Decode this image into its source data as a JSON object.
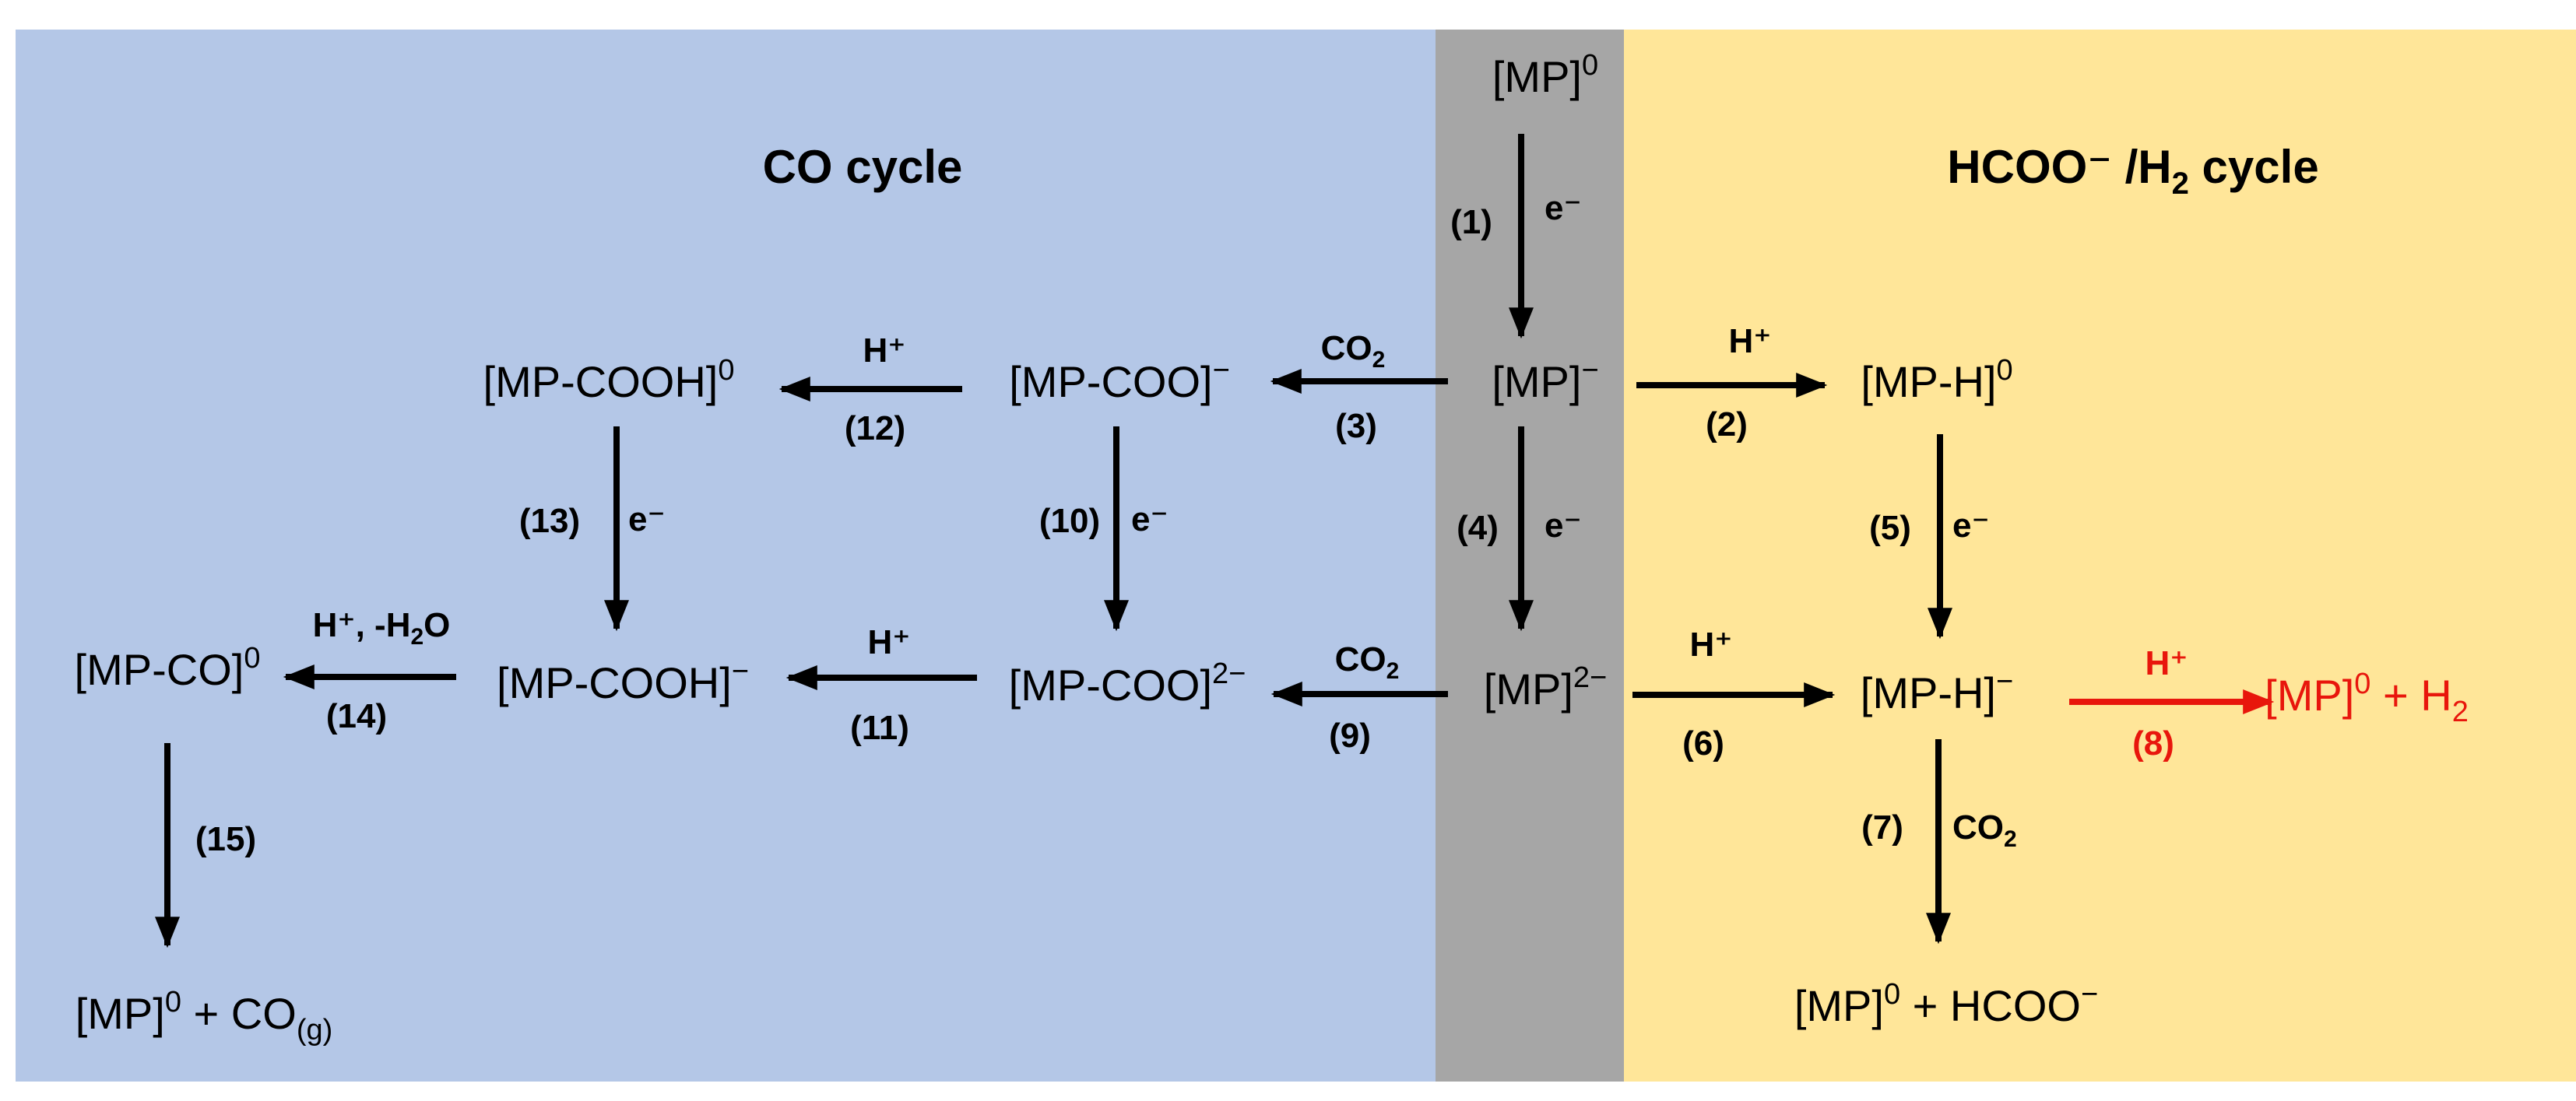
{
  "colors": {
    "co_region": "#b4c7e7",
    "center_region": "#a6a6a6",
    "hcoo_region": "#ffe699",
    "arrow": "#000000",
    "highlight": "#e8160c"
  },
  "titles": {
    "co_cycle": "CO cycle",
    "hcoo_cycle_prefix": "HCOO⁻ /H",
    "hcoo_cycle_sub": "2",
    "hcoo_cycle_suffix": " cycle"
  },
  "species": {
    "mp0_top": {
      "main": "[MP]",
      "sup": "0"
    },
    "mp_minus": {
      "main": "[MP]",
      "sup": "−"
    },
    "mp_2minus": {
      "main": "[MP]",
      "sup": "2−"
    },
    "mp_h_0": {
      "main": "[MP-H]",
      "sup": "0"
    },
    "mp_h_minus": {
      "main": "[MP-H]",
      "sup": "−"
    },
    "mp_h2_product": {
      "main1": "[MP]",
      "sup": "0",
      "main2": " + H",
      "sub": "2"
    },
    "mp_hcoo_product": {
      "main1": "[MP]",
      "sup": "0",
      "main2": " + HCOO",
      "sup2": "−"
    },
    "mp_coo_minus": {
      "main": "[MP-COO]",
      "sup": "−"
    },
    "mp_coo_2minus": {
      "main": "[MP-COO]",
      "sup": "2−"
    },
    "mp_cooh_0": {
      "main": "[MP-COOH]",
      "sup": "0"
    },
    "mp_cooh_minus": {
      "main": "[MP-COOH]",
      "sup": "−"
    },
    "mp_co_0": {
      "main": "[MP-CO]",
      "sup": "0"
    },
    "mp_co_product": {
      "main1": "[MP]",
      "sup": "0",
      "main2": " + CO",
      "sub": "(g)"
    }
  },
  "steps": {
    "s1": {
      "num": "(1)",
      "reagent": "e⁻"
    },
    "s2": {
      "num": "(2)",
      "reagent": "H⁺"
    },
    "s3": {
      "num": "(3)",
      "reagent_main": "CO",
      "reagent_sub": "2"
    },
    "s4": {
      "num": "(4)",
      "reagent": "e⁻"
    },
    "s5": {
      "num": "(5)",
      "reagent": "e⁻"
    },
    "s6": {
      "num": "(6)",
      "reagent": "H⁺"
    },
    "s7": {
      "num": "(7)",
      "reagent_main": "CO",
      "reagent_sub": "2"
    },
    "s8": {
      "num": "(8)",
      "reagent": "H⁺"
    },
    "s9": {
      "num": "(9)",
      "reagent_main": "CO",
      "reagent_sub": "2"
    },
    "s10": {
      "num": "(10)",
      "reagent": "e⁻"
    },
    "s11": {
      "num": "(11)",
      "reagent": "H⁺"
    },
    "s12": {
      "num": "(12)",
      "reagent": "H⁺"
    },
    "s13": {
      "num": "(13)",
      "reagent": "e⁻"
    },
    "s14": {
      "num": "(14)",
      "reagent_main": "H⁺, -H",
      "reagent_sub": "2",
      "reagent_tail": "O"
    },
    "s15": {
      "num": "(15)"
    }
  }
}
